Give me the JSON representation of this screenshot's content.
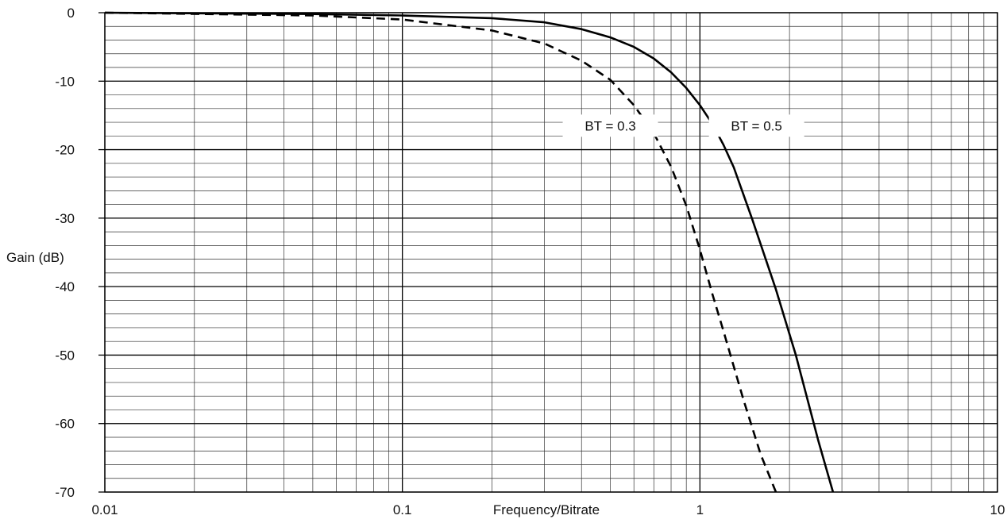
{
  "chart_data": {
    "type": "line",
    "title": "",
    "xlabel": "Frequency/Bitrate",
    "ylabel": "Gain (dB)",
    "x_scale": "log",
    "xlim": [
      0.01,
      10
    ],
    "ylim": [
      -70,
      0
    ],
    "grid": true,
    "x_tick_labels": [
      "0.01",
      "0.1",
      "1",
      "10"
    ],
    "x_ticks": [
      0.01,
      0.1,
      1,
      10
    ],
    "y_tick_labels": [
      "0",
      "-10",
      "-20",
      "-30",
      "-40",
      "-50",
      "-60",
      "-70"
    ],
    "y_ticks": [
      0,
      -10,
      -20,
      -30,
      -40,
      -50,
      -60,
      -70
    ],
    "series": [
      {
        "name": "BT = 0.5",
        "style": "solid",
        "color": "#000000",
        "x": [
          0.01,
          0.05,
          0.1,
          0.2,
          0.3,
          0.4,
          0.5,
          0.6,
          0.7,
          0.8,
          0.9,
          1.0,
          1.1,
          1.2,
          1.3,
          1.5,
          1.8,
          2.1,
          2.5,
          2.8
        ],
        "y": [
          0,
          -0.2,
          -0.4,
          -0.8,
          -1.4,
          -2.4,
          -3.6,
          -5.0,
          -6.7,
          -8.7,
          -11.0,
          -13.5,
          -16.2,
          -19.3,
          -22.6,
          -30.2,
          -40.4,
          -50.0,
          -62.5,
          -70.0
        ]
      },
      {
        "name": "BT = 0.3",
        "style": "dashed",
        "color": "#000000",
        "x": [
          0.01,
          0.05,
          0.1,
          0.2,
          0.3,
          0.4,
          0.5,
          0.6,
          0.7,
          0.8,
          0.9,
          1.0,
          1.1,
          1.2,
          1.4,
          1.6,
          1.8
        ],
        "y": [
          0,
          -0.4,
          -1.0,
          -2.6,
          -4.5,
          -7.0,
          -9.8,
          -13.5,
          -17.6,
          -22.5,
          -28.2,
          -34.6,
          -41.0,
          -46.5,
          -56.5,
          -64.5,
          -70.0
        ]
      }
    ],
    "annotations": [
      {
        "text": "BT = 0.3",
        "x": 0.5,
        "y": -16.5
      },
      {
        "text": "BT = 0.5",
        "x": 1.55,
        "y": -16.5
      }
    ]
  }
}
